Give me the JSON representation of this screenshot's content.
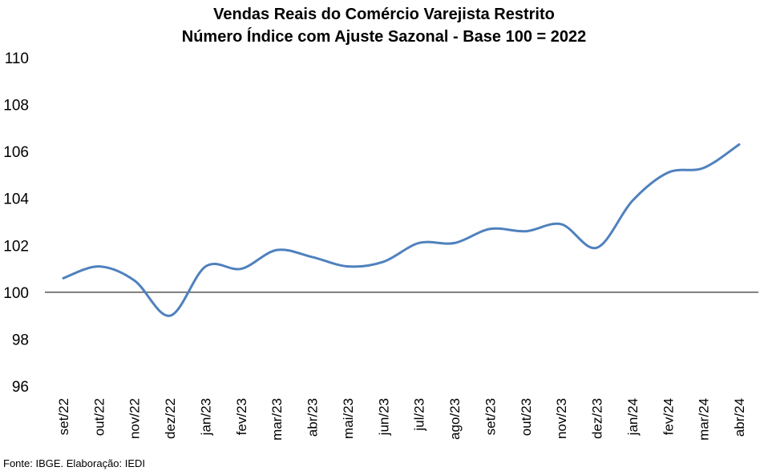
{
  "chart_data": {
    "type": "line",
    "title": "Vendas Reais do Comércio Varejista Restrito",
    "subtitle": "Número Índice com Ajuste Sazonal - Base 100 = 2022",
    "categories": [
      "set/22",
      "out/22",
      "nov/22",
      "dez/22",
      "jan/23",
      "fev/23",
      "mar/23",
      "abr/23",
      "mai/23",
      "jun/23",
      "jul/23",
      "ago/23",
      "set/23",
      "out/23",
      "nov/23",
      "dez/23",
      "jan/24",
      "fev/24",
      "mar/24",
      "abr/24"
    ],
    "series": [
      {
        "values": [
          100.6,
          101.1,
          100.5,
          99.0,
          101.1,
          101.0,
          101.8,
          101.5,
          101.1,
          101.3,
          102.1,
          102.1,
          102.7,
          102.6,
          102.9,
          101.9,
          103.9,
          105.1,
          105.3,
          106.3
        ]
      }
    ],
    "yticks": [
      "96",
      "98",
      "100",
      "102",
      "104",
      "106",
      "108",
      "110"
    ],
    "ylim": [
      96,
      110
    ],
    "reference_line": 100,
    "line_color": "#4F81BD",
    "grid": false
  },
  "source": "Fonte: IBGE. Elaboração: IEDI"
}
